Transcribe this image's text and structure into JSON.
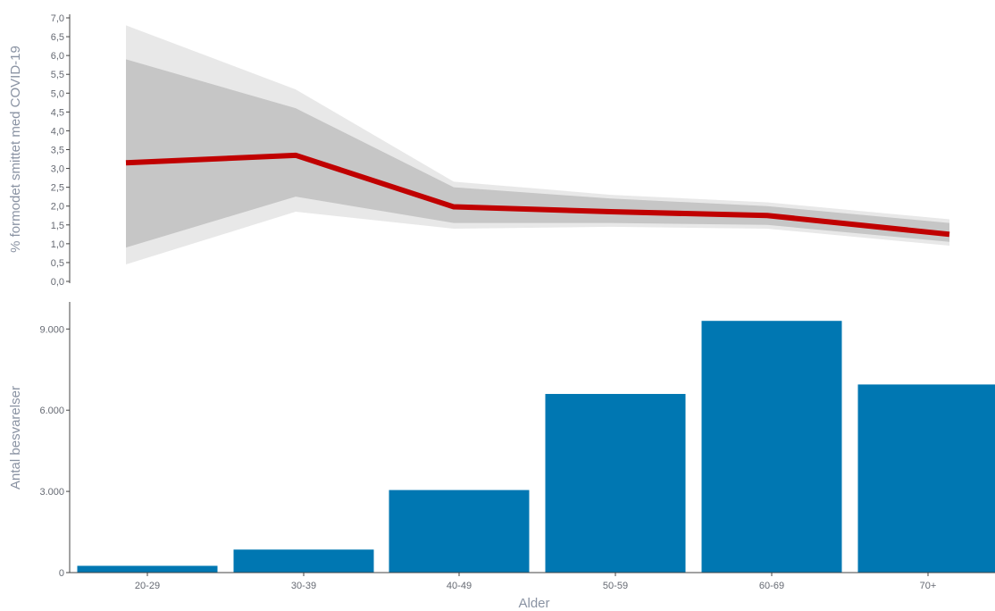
{
  "chart_data": [
    {
      "type": "line",
      "categories": [
        "20-29",
        "30-39",
        "40-49",
        "50-59",
        "60-69",
        "70+"
      ],
      "series": [
        {
          "values": [
            3.15,
            3.35,
            1.98,
            1.85,
            1.75,
            1.25
          ],
          "color": "#c00000"
        }
      ],
      "bands": {
        "ci95_low": [
          0.45,
          1.85,
          1.4,
          1.45,
          1.4,
          0.95
        ],
        "ci95_high": [
          6.8,
          5.1,
          2.65,
          2.3,
          2.1,
          1.65
        ],
        "ci80_low": [
          0.9,
          2.25,
          1.55,
          1.55,
          1.5,
          1.05
        ],
        "ci80_high": [
          5.9,
          4.6,
          2.5,
          2.2,
          2.0,
          1.55
        ],
        "outer_color": "#e8e8e8",
        "inner_color": "#c6c6c6"
      },
      "ylabel": "% formodet smittet med COVID-19",
      "ylim": [
        0,
        7
      ],
      "yticks": [
        "0,0",
        "0,5",
        "1,0",
        "1,5",
        "2,0",
        "2,5",
        "3,0",
        "3,5",
        "4,0",
        "4,5",
        "5,0",
        "5,5",
        "6,0",
        "6,5",
        "7,0"
      ],
      "grid": false
    },
    {
      "type": "bar",
      "categories": [
        "20-29",
        "30-39",
        "40-49",
        "50-59",
        "60-69",
        "70+"
      ],
      "values": [
        250,
        850,
        3050,
        6600,
        9300,
        6950
      ],
      "color": "#0077b2",
      "ylabel": "Antal besvarelser",
      "xlabel": "Alder",
      "ylim": [
        0,
        10000
      ],
      "yticks": [
        "0",
        "3.000",
        "6.000",
        "9.000"
      ],
      "grid": false
    }
  ]
}
